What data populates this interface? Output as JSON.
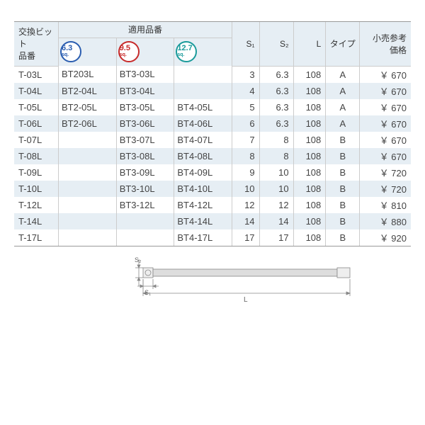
{
  "headers": {
    "bit_number": "交換ビット\n品番",
    "applicable_group": "適用品番",
    "badges": [
      {
        "num": "6.3",
        "sq": "sq.",
        "color": "blue"
      },
      {
        "num": "9.5",
        "sq": "sq.",
        "color": "red"
      },
      {
        "num": "12.7",
        "sq": "sq.",
        "color": "teal"
      }
    ],
    "s1": "S₁",
    "s2": "S₂",
    "l": "L",
    "type": "タイプ",
    "price": "小売参考\n価格"
  },
  "currency": "￥",
  "rows": [
    {
      "bit": "T-03L",
      "a1": "BT203L",
      "a2": "BT3-03L",
      "a3": "",
      "s1": "3",
      "s2": "6.3",
      "l": "108",
      "type": "A",
      "price": "670"
    },
    {
      "bit": "T-04L",
      "a1": "BT2-04L",
      "a2": "BT3-04L",
      "a3": "",
      "s1": "4",
      "s2": "6.3",
      "l": "108",
      "type": "A",
      "price": "670"
    },
    {
      "bit": "T-05L",
      "a1": "BT2-05L",
      "a2": "BT3-05L",
      "a3": "BT4-05L",
      "s1": "5",
      "s2": "6.3",
      "l": "108",
      "type": "A",
      "price": "670"
    },
    {
      "bit": "T-06L",
      "a1": "BT2-06L",
      "a2": "BT3-06L",
      "a3": "BT4-06L",
      "s1": "6",
      "s2": "6.3",
      "l": "108",
      "type": "A",
      "price": "670"
    },
    {
      "bit": "T-07L",
      "a1": "",
      "a2": "BT3-07L",
      "a3": "BT4-07L",
      "s1": "7",
      "s2": "8",
      "l": "108",
      "type": "B",
      "price": "670"
    },
    {
      "bit": "T-08L",
      "a1": "",
      "a2": "BT3-08L",
      "a3": "BT4-08L",
      "s1": "8",
      "s2": "8",
      "l": "108",
      "type": "B",
      "price": "670"
    },
    {
      "bit": "T-09L",
      "a1": "",
      "a2": "BT3-09L",
      "a3": "BT4-09L",
      "s1": "9",
      "s2": "10",
      "l": "108",
      "type": "B",
      "price": "720"
    },
    {
      "bit": "T-10L",
      "a1": "",
      "a2": "BT3-10L",
      "a3": "BT4-10L",
      "s1": "10",
      "s2": "10",
      "l": "108",
      "type": "B",
      "price": "720"
    },
    {
      "bit": "T-12L",
      "a1": "",
      "a2": "BT3-12L",
      "a3": "BT4-12L",
      "s1": "12",
      "s2": "12",
      "l": "108",
      "type": "B",
      "price": "810"
    },
    {
      "bit": "T-14L",
      "a1": "",
      "a2": "",
      "a3": "BT4-14L",
      "s1": "14",
      "s2": "14",
      "l": "108",
      "type": "B",
      "price": "880"
    },
    {
      "bit": "T-17L",
      "a1": "",
      "a2": "",
      "a3": "BT4-17L",
      "s1": "17",
      "s2": "17",
      "l": "108",
      "type": "B",
      "price": "920"
    }
  ],
  "diagram": {
    "s1_label": "S₁",
    "s2_label": "S₂",
    "l_label": "L"
  },
  "colors": {
    "header_bg": "#e6eef4",
    "row_alt_bg": "#e6eef4",
    "border": "#999999",
    "text": "#444444",
    "badge_blue": "#2a5db0",
    "badge_red": "#c72b2b",
    "badge_teal": "#1b9b9b"
  }
}
